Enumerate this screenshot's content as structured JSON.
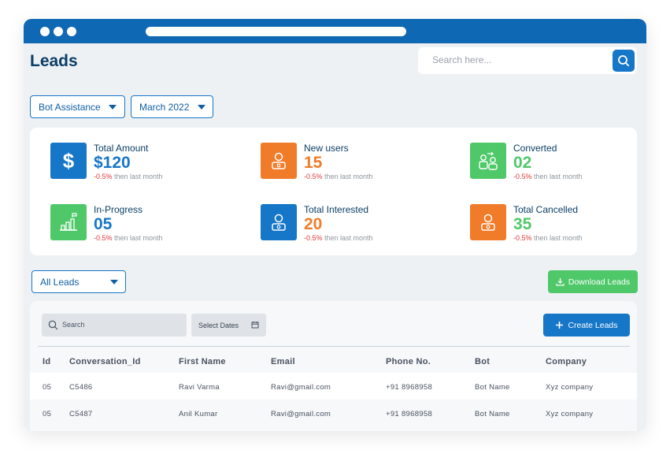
{
  "page": {
    "title": "Leads",
    "search_placeholder": "Search here..."
  },
  "filters": {
    "bot": "Bot Assistance",
    "month": "March 2022"
  },
  "stats": [
    {
      "label": "Total Amount",
      "value": "$120",
      "change": "-0.5%",
      "change_suffix": " then last month",
      "color": "#1676c7",
      "value_color": "#1676c7",
      "icon": "dollar-icon"
    },
    {
      "label": "New users",
      "value": "15",
      "change": "-0.5%",
      "change_suffix": " then last month",
      "color": "#f07c2a",
      "value_color": "#f07c2a",
      "icon": "user-icon"
    },
    {
      "label": "Converted",
      "value": "02",
      "change": "-0.5%",
      "change_suffix": " then last month",
      "color": "#4fc86a",
      "value_color": "#4fc86a",
      "icon": "users-exchange-icon"
    },
    {
      "label": "In-Progress",
      "value": "05",
      "change": "-0.5%",
      "change_suffix": " then last month",
      "color": "#4fc86a",
      "value_color": "#1676c7",
      "icon": "growth-chart-icon"
    },
    {
      "label": "Total Interested",
      "value": "20",
      "change": "-0.5%",
      "change_suffix": " then last month",
      "color": "#1676c7",
      "value_color": "#f07c2a",
      "icon": "user-icon"
    },
    {
      "label": "Total Cancelled",
      "value": "35",
      "change": "-0.5%",
      "change_suffix": " then last month",
      "color": "#f07c2a",
      "value_color": "#4fc86a",
      "icon": "user-icon"
    }
  ],
  "leads_filter": "All Leads",
  "download_label": "Download Leads",
  "table": {
    "search_label": "Search",
    "dates_label": "Select Dates",
    "create_label": "Create Leads",
    "columns": [
      "Id",
      "Conversation_Id",
      "First Name",
      "Email",
      "Phone No.",
      "Bot",
      "Company"
    ],
    "rows": [
      [
        "05",
        "C5486",
        "Ravi Varma",
        "Ravi@gmail.com",
        "+91 8968958",
        "Bot Name",
        "Xyz company"
      ],
      [
        "05",
        "C5487",
        "Anil Kumar",
        "Ravi@gmail.com",
        "+91 8968958",
        "Bot Name",
        "Xyz company"
      ]
    ]
  }
}
